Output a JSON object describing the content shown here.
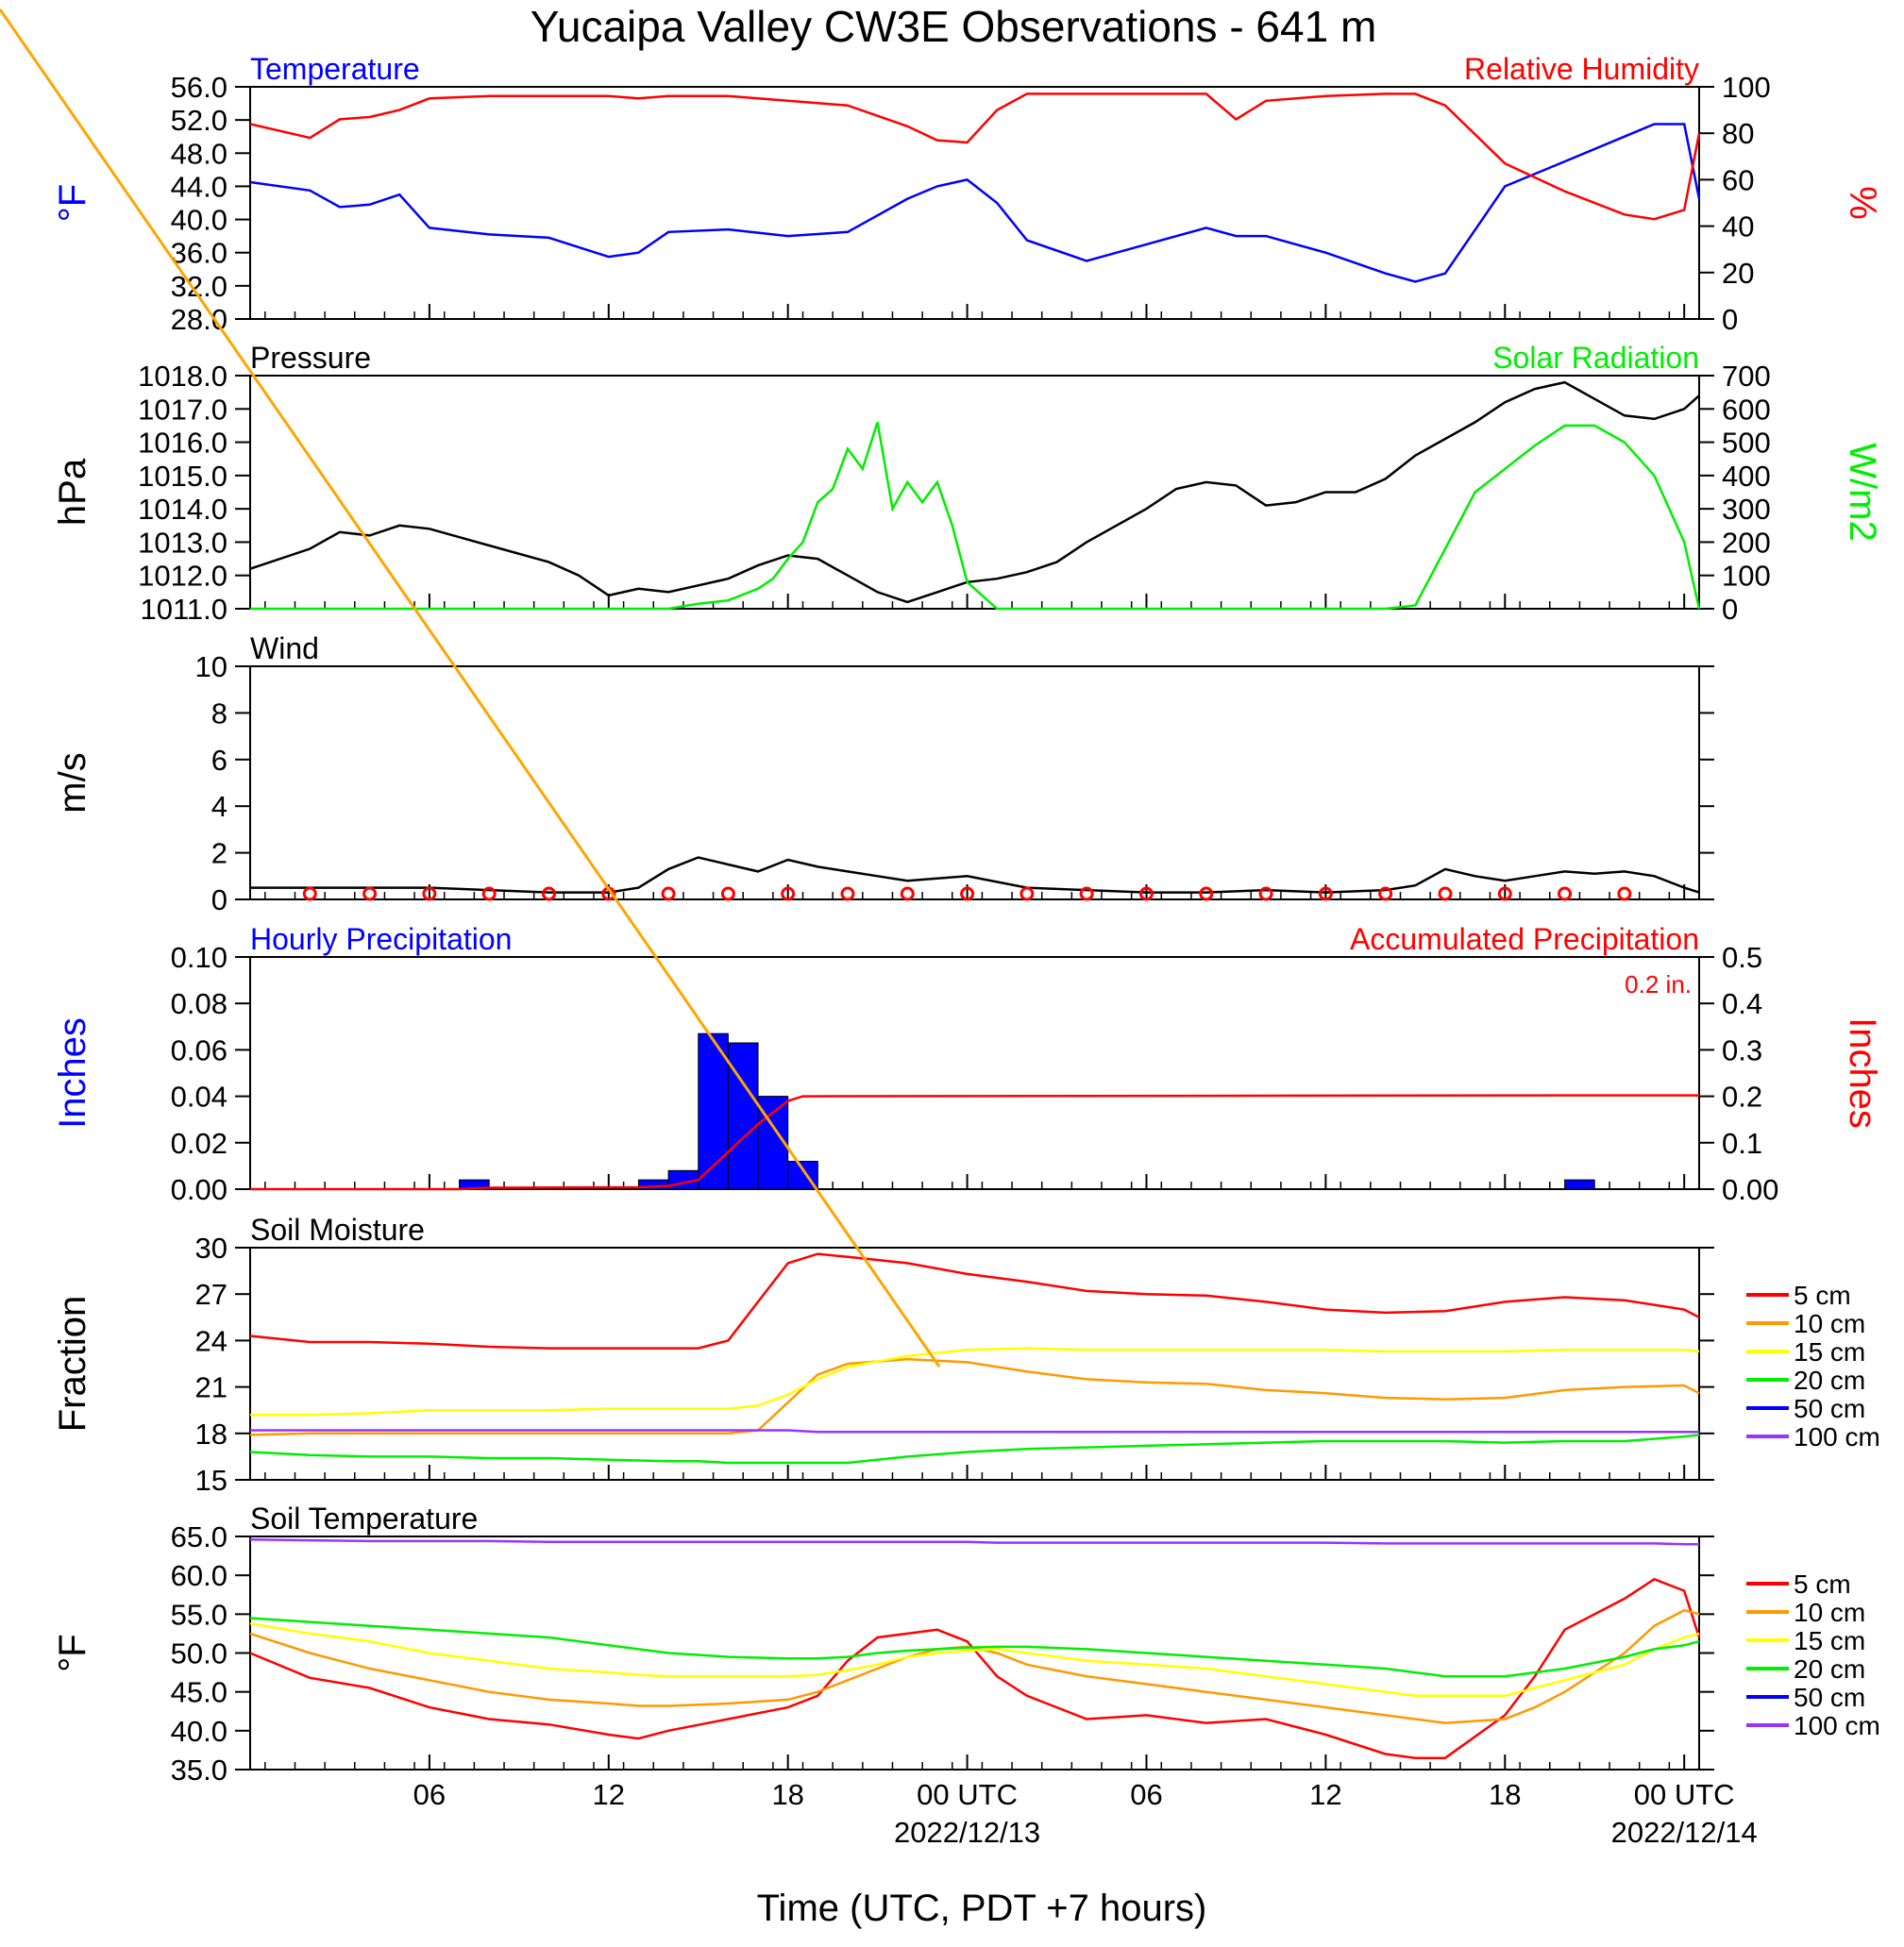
{
  "title": "Yucaipa Valley CW3E Observations - 641 m",
  "x_axis": {
    "label": "Time (UTC, PDT +7 hours)",
    "ticks": [
      "06",
      "12",
      "18",
      "00 UTC",
      "06",
      "12",
      "18",
      "00 UTC"
    ],
    "dates": [
      "2022/12/13",
      "2022/12/14"
    ]
  },
  "legend": {
    "entries": [
      "5 cm",
      "10 cm",
      "15 cm",
      "20 cm",
      "50 cm",
      "100 cm"
    ],
    "colors": [
      "#ff0000",
      "#ff9900",
      "#ffff00",
      "#00ee00",
      "#0000ff",
      "#9933ff"
    ]
  },
  "colors": {
    "temperature": "#0000ff",
    "humidity": "#ff0000",
    "pressure": "#000000",
    "solar": "#00ee00",
    "wind": "#000000",
    "wind_barb": "#ff0000",
    "hourly_precip": "#0000ff",
    "accum_precip": "#ff0000",
    "overlay_line": "#ffa500"
  },
  "chart_data": [
    {
      "type": "line",
      "title_left": "Temperature",
      "title_right": "Relative Humidity",
      "ylabel_left": "°F",
      "ylabel_right": "%",
      "ylim_left": [
        28,
        56
      ],
      "ylim_right": [
        0,
        100
      ],
      "yticks_left": [
        "56.0",
        "52.0",
        "48.0",
        "44.0",
        "40.0",
        "36.0",
        "32.0",
        "28.0"
      ],
      "yticks_right": [
        "100",
        "80",
        "60",
        "40",
        "20",
        "0"
      ],
      "x_hours": [
        0,
        2,
        3,
        4,
        5,
        6,
        8,
        10,
        12,
        13,
        14,
        16,
        18,
        20,
        22,
        23,
        24,
        25,
        26,
        28,
        30,
        32,
        33,
        34,
        36,
        38,
        39,
        40,
        42,
        44,
        46,
        47,
        48,
        48.5
      ],
      "series": [
        {
          "name": "Temperature",
          "axis": "left",
          "values": [
            44.5,
            43.5,
            41.5,
            41.8,
            43.0,
            39.0,
            38.2,
            37.8,
            35.5,
            36.0,
            38.5,
            38.8,
            38.0,
            38.5,
            42.5,
            44.0,
            44.8,
            42.0,
            37.5,
            35.0,
            37.0,
            39.0,
            38.0,
            38.0,
            36.0,
            33.5,
            32.5,
            33.5,
            44.0,
            47.0,
            50.0,
            51.5,
            51.5,
            42.5
          ]
        },
        {
          "name": "Relative Humidity",
          "axis": "right",
          "values": [
            84,
            78,
            86,
            87,
            90,
            95,
            96,
            96,
            96,
            95,
            96,
            96,
            94,
            92,
            83,
            77,
            76,
            90,
            97,
            97,
            97,
            97,
            86,
            94,
            96,
            97,
            97,
            92,
            67,
            55,
            45,
            43,
            47,
            80
          ]
        }
      ]
    },
    {
      "type": "line",
      "title_left": "Pressure",
      "title_right": "Solar Radiation",
      "ylabel_left": "hPa",
      "ylabel_right": "W/m2",
      "ylim_left": [
        1011,
        1018
      ],
      "ylim_right": [
        0,
        700
      ],
      "yticks_left": [
        "1018.0",
        "1017.0",
        "1016.0",
        "1015.0",
        "1014.0",
        "1013.0",
        "1012.0",
        "1011.0"
      ],
      "yticks_right": [
        "700",
        "600",
        "500",
        "400",
        "300",
        "200",
        "100",
        "0"
      ],
      "series": [
        {
          "name": "Pressure",
          "axis": "left",
          "x_hours": [
            0,
            2,
            3,
            4,
            5,
            6,
            8,
            10,
            11,
            12,
            13,
            14,
            15,
            16,
            17,
            18,
            19,
            20,
            21,
            22,
            23,
            24,
            25,
            26,
            27,
            28,
            30,
            31,
            32,
            33,
            34,
            35,
            36,
            37,
            38,
            39,
            40,
            41,
            42,
            43,
            44,
            45,
            46,
            47,
            48,
            48.5
          ],
          "values": [
            1012.2,
            1012.8,
            1013.3,
            1013.2,
            1013.5,
            1013.4,
            1012.9,
            1012.4,
            1012.0,
            1011.4,
            1011.6,
            1011.5,
            1011.7,
            1011.9,
            1012.3,
            1012.6,
            1012.5,
            1012.0,
            1011.5,
            1011.2,
            1011.5,
            1011.8,
            1011.9,
            1012.1,
            1012.4,
            1013.0,
            1014.0,
            1014.6,
            1014.8,
            1014.7,
            1014.1,
            1014.2,
            1014.5,
            1014.5,
            1014.9,
            1015.6,
            1016.1,
            1016.6,
            1017.2,
            1017.6,
            1017.8,
            1017.3,
            1016.8,
            1016.7,
            1017.0,
            1017.4
          ]
        },
        {
          "name": "Solar Radiation",
          "axis": "right",
          "x_hours": [
            0,
            14,
            15,
            16,
            17,
            17.5,
            18,
            18.5,
            19,
            19.5,
            20,
            20.5,
            21,
            21.5,
            22,
            22.5,
            23,
            23.5,
            24,
            25,
            36,
            37,
            38,
            39,
            40,
            41,
            42,
            43,
            44,
            45,
            46,
            47,
            48,
            48.5
          ],
          "values": [
            0,
            0,
            15,
            25,
            60,
            90,
            150,
            200,
            320,
            360,
            480,
            420,
            560,
            300,
            380,
            320,
            380,
            250,
            80,
            0,
            0,
            0,
            0,
            10,
            180,
            350,
            420,
            490,
            550,
            550,
            500,
            400,
            200,
            0
          ]
        }
      ]
    },
    {
      "type": "line",
      "title_left": "Wind",
      "ylabel_left": "m/s",
      "ylim_left": [
        0,
        10
      ],
      "yticks_left": [
        "10",
        "8",
        "6",
        "4",
        "2",
        "0"
      ],
      "x_hours": [
        0,
        2,
        4,
        6,
        8,
        10,
        12,
        13,
        14,
        15,
        16,
        17,
        18,
        19,
        20,
        21,
        22,
        23,
        24,
        26,
        28,
        30,
        32,
        34,
        36,
        38,
        39,
        40,
        41,
        42,
        43,
        44,
        45,
        46,
        47,
        48,
        48.5
      ],
      "series": [
        {
          "name": "Wind",
          "axis": "left",
          "values": [
            0.5,
            0.5,
            0.5,
            0.5,
            0.4,
            0.3,
            0.3,
            0.5,
            1.3,
            1.8,
            1.5,
            1.2,
            1.7,
            1.4,
            1.2,
            1.0,
            0.8,
            0.9,
            1.0,
            0.5,
            0.4,
            0.3,
            0.3,
            0.4,
            0.3,
            0.4,
            0.6,
            1.3,
            1.0,
            0.8,
            1.0,
            1.2,
            1.1,
            1.2,
            1.0,
            0.5,
            0.3
          ]
        }
      ]
    },
    {
      "type": "bar",
      "title_left": "Hourly Precipitation",
      "title_right": "Accumulated Precipitation",
      "annotation": "0.2 in.",
      "ylabel_left": "Inches",
      "ylabel_right": "Inches",
      "ylim_left": [
        0,
        0.1
      ],
      "ylim_right": [
        0,
        0.5
      ],
      "yticks_left": [
        "0.10",
        "0.08",
        "0.06",
        "0.04",
        "0.02",
        "0.00"
      ],
      "yticks_right": [
        "0.5",
        "0.4",
        "0.3",
        "0.2",
        "0.1",
        "0.00"
      ],
      "series": [
        {
          "name": "Hourly Precipitation",
          "axis": "left",
          "bar_hours": [
            7,
            13,
            14,
            15,
            16,
            17,
            18,
            44
          ],
          "values": [
            0.004,
            0.004,
            0.008,
            0.067,
            0.063,
            0.04,
            0.012,
            0.004
          ]
        },
        {
          "name": "Accumulated Precipitation",
          "axis": "right",
          "x_hours": [
            0,
            7,
            8,
            13,
            14,
            15,
            16,
            17,
            18,
            18.5,
            44,
            48.5
          ],
          "values": [
            0,
            0,
            0.003,
            0.004,
            0.007,
            0.02,
            0.08,
            0.14,
            0.19,
            0.2,
            0.202,
            0.202
          ]
        }
      ]
    },
    {
      "type": "line",
      "title_left": "Soil Moisture",
      "ylabel_left": "Fraction",
      "ylim_left": [
        15,
        30
      ],
      "yticks_left": [
        "30",
        "27",
        "24",
        "21",
        "18",
        "15"
      ],
      "x_hours": [
        0,
        2,
        4,
        6,
        8,
        10,
        12,
        14,
        15,
        16,
        17,
        18,
        19,
        20,
        22,
        24,
        26,
        28,
        30,
        32,
        34,
        36,
        38,
        40,
        42,
        44,
        46,
        48,
        48.5
      ],
      "series": [
        {
          "name": "5 cm",
          "values": [
            24.3,
            23.9,
            23.9,
            23.8,
            23.6,
            23.5,
            23.5,
            23.5,
            23.5,
            24.0,
            26.5,
            29.0,
            29.6,
            29.4,
            29.0,
            28.3,
            27.8,
            27.2,
            27.0,
            26.9,
            26.5,
            26.0,
            25.8,
            25.9,
            26.5,
            26.8,
            26.6,
            26.0,
            25.5
          ]
        },
        {
          "name": "10 cm",
          "values": [
            17.9,
            18.0,
            18.0,
            18.0,
            18.0,
            18.0,
            18.0,
            18.0,
            18.0,
            18.0,
            18.2,
            20.0,
            21.8,
            22.5,
            22.8,
            22.6,
            22.0,
            21.5,
            21.3,
            21.2,
            20.8,
            20.6,
            20.3,
            20.2,
            20.3,
            20.8,
            21.0,
            21.1,
            20.6
          ]
        },
        {
          "name": "15 cm",
          "values": [
            19.2,
            19.2,
            19.3,
            19.5,
            19.5,
            19.5,
            19.6,
            19.6,
            19.6,
            19.6,
            19.8,
            20.5,
            21.5,
            22.3,
            23.0,
            23.4,
            23.5,
            23.4,
            23.4,
            23.4,
            23.4,
            23.4,
            23.3,
            23.3,
            23.3,
            23.4,
            23.4,
            23.4,
            23.3
          ]
        },
        {
          "name": "20 cm",
          "values": [
            16.8,
            16.6,
            16.5,
            16.5,
            16.4,
            16.4,
            16.3,
            16.2,
            16.2,
            16.1,
            16.1,
            16.1,
            16.1,
            16.1,
            16.5,
            16.8,
            17.0,
            17.1,
            17.2,
            17.3,
            17.4,
            17.5,
            17.5,
            17.5,
            17.4,
            17.5,
            17.5,
            17.8,
            17.9
          ]
        },
        {
          "name": "100 cm",
          "values": [
            18.2,
            18.2,
            18.2,
            18.2,
            18.2,
            18.2,
            18.2,
            18.2,
            18.2,
            18.2,
            18.2,
            18.2,
            18.1,
            18.1,
            18.1,
            18.1,
            18.1,
            18.1,
            18.1,
            18.1,
            18.1,
            18.1,
            18.1,
            18.1,
            18.1,
            18.1,
            18.1,
            18.1,
            18.1
          ]
        }
      ]
    },
    {
      "type": "line",
      "title_left": "Soil Temperature",
      "ylabel_left": "°F",
      "ylim_left": [
        35,
        65
      ],
      "yticks_left": [
        "65.0",
        "60.0",
        "55.0",
        "50.0",
        "45.0",
        "40.0",
        "35.0"
      ],
      "x_hours": [
        0,
        2,
        4,
        6,
        8,
        10,
        12,
        13,
        14,
        16,
        18,
        19,
        20,
        21,
        22,
        23,
        24,
        25,
        26,
        28,
        30,
        32,
        34,
        36,
        38,
        39,
        40,
        42,
        43,
        44,
        46,
        47,
        48,
        48.5
      ],
      "series": [
        {
          "name": "5 cm",
          "values": [
            50.0,
            46.8,
            45.5,
            43.0,
            41.5,
            40.8,
            39.5,
            39.0,
            40.0,
            41.5,
            43.0,
            44.5,
            49.0,
            52.0,
            52.5,
            53.0,
            51.5,
            47.0,
            44.5,
            41.5,
            42.0,
            41.0,
            41.5,
            39.5,
            37.0,
            36.5,
            36.5,
            42.0,
            47.0,
            53.0,
            57.0,
            59.5,
            58.0,
            52.0
          ]
        },
        {
          "name": "10 cm",
          "values": [
            52.5,
            50.0,
            48.0,
            46.5,
            45.0,
            44.0,
            43.5,
            43.2,
            43.2,
            43.5,
            44.0,
            45.0,
            46.5,
            48.0,
            49.5,
            50.5,
            50.8,
            50.0,
            48.5,
            47.0,
            46.0,
            45.0,
            44.0,
            43.0,
            42.0,
            41.5,
            41.0,
            41.5,
            43.0,
            45.0,
            50.0,
            53.5,
            55.5,
            55.0
          ]
        },
        {
          "name": "15 cm",
          "values": [
            53.8,
            52.5,
            51.5,
            50.0,
            49.0,
            48.0,
            47.5,
            47.2,
            47.0,
            47.0,
            47.0,
            47.2,
            47.8,
            48.5,
            49.5,
            50.0,
            50.3,
            50.5,
            50.0,
            49.0,
            48.5,
            48.0,
            47.0,
            46.0,
            45.0,
            44.5,
            44.5,
            44.5,
            45.5,
            46.5,
            48.5,
            50.5,
            52.0,
            52.5
          ]
        },
        {
          "name": "20 cm",
          "values": [
            54.5,
            54.0,
            53.5,
            53.0,
            52.5,
            52.0,
            51.0,
            50.5,
            50.0,
            49.5,
            49.3,
            49.3,
            49.5,
            50.0,
            50.3,
            50.5,
            50.7,
            50.8,
            50.8,
            50.5,
            50.0,
            49.5,
            49.0,
            48.5,
            48.0,
            47.5,
            47.0,
            47.0,
            47.5,
            48.0,
            49.5,
            50.5,
            51.0,
            51.5
          ]
        },
        {
          "name": "100 cm",
          "values": [
            64.6,
            64.5,
            64.4,
            64.4,
            64.4,
            64.3,
            64.3,
            64.3,
            64.3,
            64.3,
            64.3,
            64.3,
            64.3,
            64.3,
            64.3,
            64.3,
            64.3,
            64.2,
            64.2,
            64.2,
            64.2,
            64.2,
            64.2,
            64.2,
            64.1,
            64.1,
            64.1,
            64.1,
            64.1,
            64.1,
            64.1,
            64.1,
            64.0,
            64.0
          ]
        }
      ]
    }
  ]
}
